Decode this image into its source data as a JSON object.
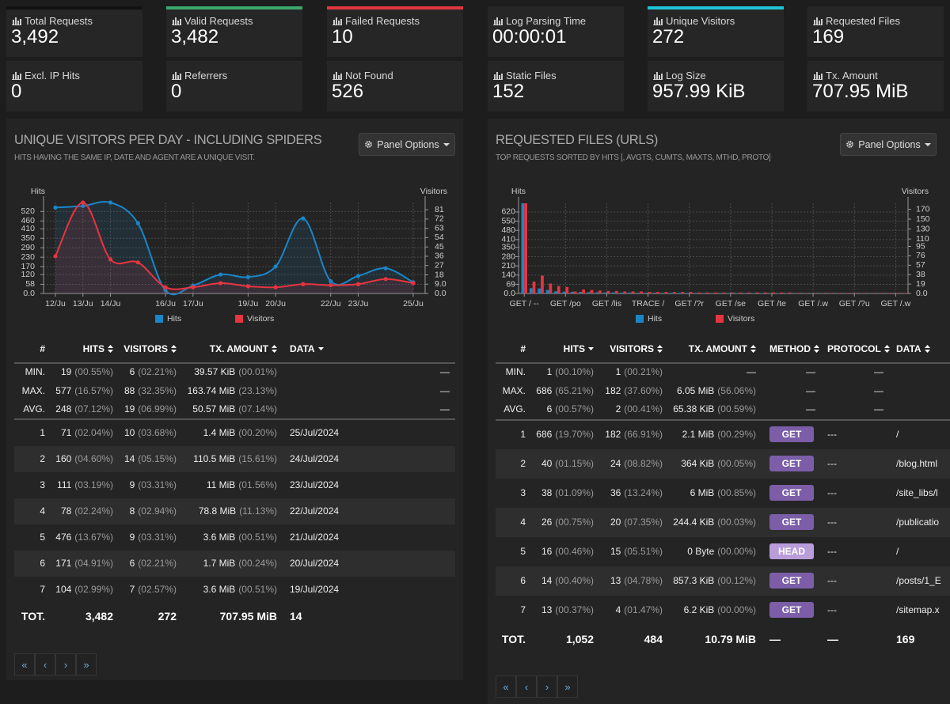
{
  "cards": [
    {
      "label": "Total Requests",
      "value": "3,492",
      "color": "#111111"
    },
    {
      "label": "Valid Requests",
      "value": "3,482",
      "color": "#3aa96e"
    },
    {
      "label": "Failed Requests",
      "value": "10",
      "color": "#e2373f"
    },
    {
      "label": "Log Parsing Time",
      "value": "00:00:01"
    },
    {
      "label": "Unique Visitors",
      "value": "272",
      "color": "#1fc4d8"
    },
    {
      "label": "Requested Files",
      "value": "169"
    },
    {
      "label": "Excl. IP Hits",
      "value": "0"
    },
    {
      "label": "Referrers",
      "value": "0"
    },
    {
      "label": "Not Found",
      "value": "526"
    },
    {
      "label": "Static Files",
      "value": "152"
    },
    {
      "label": "Log Size",
      "value": "957.99 KiB"
    },
    {
      "label": "Tx. Amount",
      "value": "707.95 MiB"
    }
  ],
  "chart_data": [
    {
      "type": "line",
      "y_label": "Hits",
      "y2_label": "Visitors",
      "categories": [
        "12/Ju",
        "13/Ju",
        "14/Ju",
        null,
        "16/Ju",
        "17/Ju",
        null,
        "19/Ju",
        "20/Ju",
        null,
        "22/Ju",
        "23/Ju",
        null,
        "25/Ju"
      ],
      "series": [
        {
          "name": "Hits",
          "color": "#1a86c7",
          "values": [
            545,
            555,
            577,
            445,
            19,
            50,
            120,
            104,
            171,
            476,
            78,
            111,
            160,
            71
          ]
        },
        {
          "name": "Visitors",
          "color": "#e83440",
          "axis": "y2",
          "values": [
            36,
            88,
            33,
            30,
            6,
            6,
            10,
            7,
            6,
            9,
            8,
            9,
            14,
            10
          ]
        }
      ],
      "ylim": [
        0,
        577
      ],
      "yticks": [
        {
          "value": 0,
          "label": "0.0"
        },
        58,
        120,
        170,
        230,
        290,
        350,
        410,
        460,
        520
      ],
      "y2lim": [
        0,
        88
      ],
      "y2ticks": [
        {
          "value": 0,
          "label": "0.0"
        },
        {
          "value": 9,
          "label": "9.0"
        },
        18,
        27,
        36,
        45,
        54,
        63,
        72,
        81
      ],
      "grid": true,
      "legend": "bottom"
    },
    {
      "type": "bar",
      "y_label": "Hits",
      "y2_label": "Visitors",
      "categories": [
        "GET / --",
        null,
        null,
        null,
        null,
        "GET /po",
        null,
        null,
        null,
        null,
        "GET /lis",
        null,
        null,
        null,
        null,
        "TRACE /",
        null,
        null,
        null,
        null,
        "GET /?r",
        null,
        null,
        null,
        null,
        "GET /se",
        null,
        null,
        null,
        null,
        "GET /te",
        null,
        null,
        null,
        null,
        "GET /.w",
        null,
        null,
        null,
        null,
        "GET /?u",
        null,
        null,
        null,
        null,
        "GET /.w",
        null
      ],
      "series": [
        {
          "name": "Hits",
          "color": "#1a86c7",
          "values": [
            686,
            40,
            38,
            26,
            16,
            14,
            13,
            12,
            10,
            9,
            8,
            8,
            7,
            7,
            6,
            6,
            6,
            5,
            5,
            5,
            5,
            4,
            4,
            4,
            4,
            4,
            3,
            3,
            3,
            3,
            3,
            3,
            3,
            2,
            2,
            2,
            2,
            2,
            2,
            2,
            2,
            2,
            2,
            1,
            1,
            1,
            1
          ]
        },
        {
          "name": "Visitors",
          "color": "#e83440",
          "axis": "y2",
          "values": [
            182,
            24,
            36,
            20,
            15,
            13,
            4,
            8,
            7,
            6,
            5,
            5,
            4,
            4,
            4,
            3,
            3,
            3,
            3,
            3,
            3,
            2,
            2,
            2,
            2,
            2,
            2,
            2,
            2,
            2,
            2,
            2,
            2,
            1,
            1,
            1,
            1,
            1,
            1,
            1,
            1,
            1,
            1,
            1,
            1,
            1,
            1
          ]
        }
      ],
      "ylim": [
        0,
        686
      ],
      "yticks": [
        {
          "value": 0,
          "label": "0.0"
        },
        69,
        140,
        210,
        280,
        350,
        410,
        480,
        550,
        620
      ],
      "y2lim": [
        0,
        182
      ],
      "y2ticks": [
        {
          "value": 0,
          "label": "0.0"
        },
        19,
        38,
        57,
        76,
        95,
        110,
        130,
        150,
        170
      ],
      "grid": true,
      "legend": "bottom"
    }
  ],
  "panels": [
    {
      "title": "UNIQUE VISITORS PER DAY - INCLUDING SPIDERS",
      "subtitle": "HITS HAVING THE SAME IP, DATE AND AGENT ARE A UNIQUE VISIT.",
      "options": "Panel Options",
      "table": {
        "headers": [
          "#",
          "HITS",
          "VISITORS",
          "TX. AMOUNT",
          "DATA"
        ],
        "sorted": 4,
        "summary": [
          [
            "MIN.",
            [
              "19",
              "(00.55%)"
            ],
            [
              "6",
              "(02.21%)"
            ],
            [
              "39.57 KiB",
              "(00.01%)"
            ],
            "—"
          ],
          [
            "MAX.",
            [
              "577",
              "(16.57%)"
            ],
            [
              "88",
              "(32.35%)"
            ],
            [
              "163.74 MiB",
              "(23.13%)"
            ],
            "—"
          ],
          [
            "AVG.",
            [
              "248",
              "(07.12%)"
            ],
            [
              "19",
              "(06.99%)"
            ],
            [
              "50.57 MiB",
              "(07.14%)"
            ],
            "—"
          ]
        ],
        "rows": [
          [
            1,
            [
              "71",
              "(02.04%)"
            ],
            [
              "10",
              "(03.68%)"
            ],
            [
              "1.4 MiB",
              "(00.20%)"
            ],
            "25/Jul/2024"
          ],
          [
            2,
            [
              "160",
              "(04.60%)"
            ],
            [
              "14",
              "(05.15%)"
            ],
            [
              "110.5 MiB",
              "(15.61%)"
            ],
            "24/Jul/2024"
          ],
          [
            3,
            [
              "111",
              "(03.19%)"
            ],
            [
              "9",
              "(03.31%)"
            ],
            [
              "11 MiB",
              "(01.56%)"
            ],
            "23/Jul/2024"
          ],
          [
            4,
            [
              "78",
              "(02.24%)"
            ],
            [
              "8",
              "(02.94%)"
            ],
            [
              "78.8 MiB",
              "(11.13%)"
            ],
            "22/Jul/2024"
          ],
          [
            5,
            [
              "476",
              "(13.67%)"
            ],
            [
              "9",
              "(03.31%)"
            ],
            [
              "3.6 MiB",
              "(00.51%)"
            ],
            "21/Jul/2024"
          ],
          [
            6,
            [
              "171",
              "(04.91%)"
            ],
            [
              "6",
              "(02.21%)"
            ],
            [
              "1.7 MiB",
              "(00.24%)"
            ],
            "20/Jul/2024"
          ],
          [
            7,
            [
              "104",
              "(02.99%)"
            ],
            [
              "7",
              "(02.57%)"
            ],
            [
              "3.6 MiB",
              "(00.51%)"
            ],
            "19/Jul/2024"
          ]
        ],
        "total": [
          "TOT.",
          "3,482",
          "272",
          "707.95 MiB",
          "14"
        ]
      },
      "pager": [
        "«",
        "‹",
        "›",
        "»"
      ]
    },
    {
      "title": "REQUESTED FILES (URLS)",
      "subtitle": "TOP REQUESTS SORTED BY HITS [, AVGTS, CUMTS, MAXTS, MTHD, PROTO]",
      "options": "Panel Options",
      "table": {
        "headers": [
          "#",
          "HITS",
          "VISITORS",
          "TX. AMOUNT",
          "METHOD",
          "PROTOCOL",
          "DATA"
        ],
        "sorted": 1,
        "method_colors": {
          "GET": "#7b5ea7",
          "HEAD": "#b99ddb"
        },
        "summary": [
          [
            "MIN.",
            [
              "1",
              "(00.10%)"
            ],
            [
              "1",
              "(00.21%)"
            ],
            "—",
            "—",
            "—"
          ],
          [
            "MAX.",
            [
              "686",
              "(65.21%)"
            ],
            [
              "182",
              "(37.60%)"
            ],
            [
              "6.05 MiB",
              "(56.06%)"
            ],
            "—",
            "—"
          ],
          [
            "AVG.",
            [
              "6",
              "(00.57%)"
            ],
            [
              "2",
              "(00.41%)"
            ],
            [
              "65.38 KiB",
              "(00.59%)"
            ],
            "—",
            "—"
          ]
        ],
        "rows": [
          [
            1,
            [
              "686",
              "(19.70%)"
            ],
            [
              "182",
              "(66.91%)"
            ],
            [
              "2.1 MiB",
              "(00.29%)"
            ],
            "GET",
            "---",
            "/"
          ],
          [
            2,
            [
              "40",
              "(01.15%)"
            ],
            [
              "24",
              "(08.82%)"
            ],
            [
              "364 KiB",
              "(00.05%)"
            ],
            "GET",
            "---",
            "/blog.html"
          ],
          [
            3,
            [
              "38",
              "(01.09%)"
            ],
            [
              "36",
              "(13.24%)"
            ],
            [
              "6 MiB",
              "(00.85%)"
            ],
            "GET",
            "---",
            "/site_libs/l"
          ],
          [
            4,
            [
              "26",
              "(00.75%)"
            ],
            [
              "20",
              "(07.35%)"
            ],
            [
              "244.4 KiB",
              "(00.03%)"
            ],
            "GET",
            "---",
            "/publicatio"
          ],
          [
            5,
            [
              "16",
              "(00.46%)"
            ],
            [
              "15",
              "(05.51%)"
            ],
            [
              "0 Byte",
              "(00.00%)"
            ],
            "HEAD",
            "---",
            "/"
          ],
          [
            6,
            [
              "14",
              "(00.40%)"
            ],
            [
              "13",
              "(04.78%)"
            ],
            [
              "857.3 KiB",
              "(00.12%)"
            ],
            "GET",
            "---",
            "/posts/1_E"
          ],
          [
            7,
            [
              "13",
              "(00.37%)"
            ],
            [
              "4",
              "(01.47%)"
            ],
            [
              "6.2 KiB",
              "(00.00%)"
            ],
            "GET",
            "---",
            "/sitemap.x"
          ]
        ],
        "total": [
          "TOT.",
          "1,052",
          "484",
          "10.79 MiB",
          "—",
          "—",
          "169"
        ]
      },
      "pager": [
        "«",
        "‹",
        "›",
        "»"
      ]
    }
  ]
}
